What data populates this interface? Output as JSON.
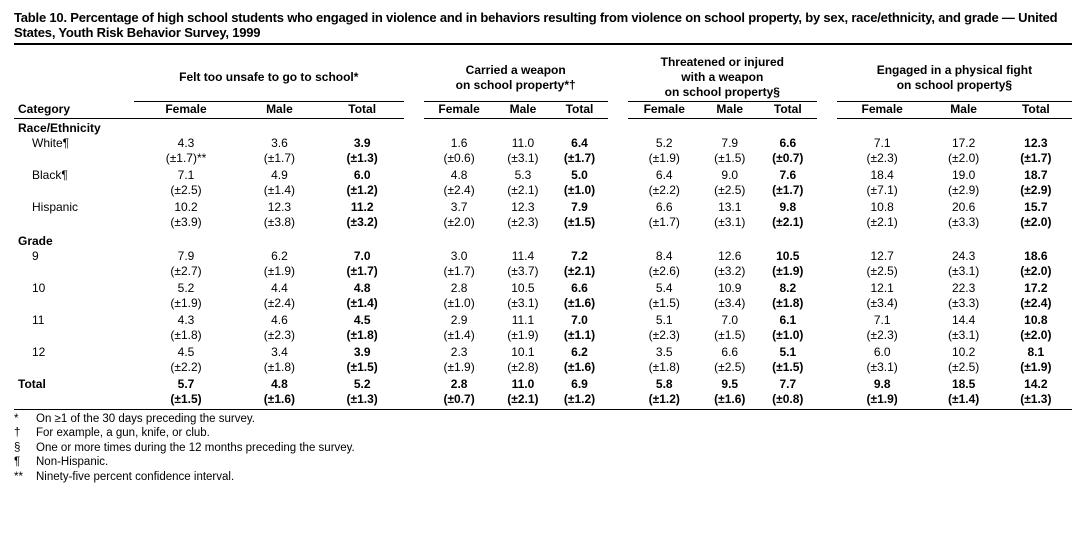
{
  "title": "Table 10. Percentage of high school students who engaged in violence and in behaviors resulting from violence on school property, by sex, race/ethnicity, and grade — United States, Youth Risk Behavior Survey, 1999",
  "category_label": "Category",
  "groups": [
    "Felt too unsafe to go to school*",
    "Carried a weapon on school property*†",
    "Threatened or injured with a weapon on school property§",
    "Engaged in a physical fight on school property§"
  ],
  "subcols": [
    "Female",
    "Male",
    "Total"
  ],
  "sections": [
    {
      "label": "Race/Ethnicity",
      "rows": [
        {
          "label": "White¶",
          "vals": [
            "4.3",
            "3.6",
            "3.9",
            "1.6",
            "11.0",
            "6.4",
            "5.2",
            "7.9",
            "6.6",
            "7.1",
            "17.2",
            "12.3"
          ],
          "cis": [
            "(±1.7)**",
            "(±1.7)",
            "(±1.3)",
            "(±0.6)",
            "(±3.1)",
            "(±1.7)",
            "(±1.9)",
            "(±1.5)",
            "(±0.7)",
            "(±2.3)",
            "(±2.0)",
            "(±1.7)"
          ]
        },
        {
          "label": "Black¶",
          "vals": [
            "7.1",
            "4.9",
            "6.0",
            "4.8",
            "5.3",
            "5.0",
            "6.4",
            "9.0",
            "7.6",
            "18.4",
            "19.0",
            "18.7"
          ],
          "cis": [
            "(±2.5)",
            "(±1.4)",
            "(±1.2)",
            "(±2.4)",
            "(±2.1)",
            "(±1.0)",
            "(±2.2)",
            "(±2.5)",
            "(±1.7)",
            "(±7.1)",
            "(±2.9)",
            "(±2.9)"
          ]
        },
        {
          "label": "Hispanic",
          "vals": [
            "10.2",
            "12.3",
            "11.2",
            "3.7",
            "12.3",
            "7.9",
            "6.6",
            "13.1",
            "9.8",
            "10.8",
            "20.6",
            "15.7"
          ],
          "cis": [
            "(±3.9)",
            "(±3.8)",
            "(±3.2)",
            "(±2.0)",
            "(±2.3)",
            "(±1.5)",
            "(±1.7)",
            "(±3.1)",
            "(±2.1)",
            "(±2.1)",
            "(±3.3)",
            "(±2.0)"
          ]
        }
      ]
    },
    {
      "label": "Grade",
      "rows": [
        {
          "label": "9",
          "vals": [
            "7.9",
            "6.2",
            "7.0",
            "3.0",
            "11.4",
            "7.2",
            "8.4",
            "12.6",
            "10.5",
            "12.7",
            "24.3",
            "18.6"
          ],
          "cis": [
            "(±2.7)",
            "(±1.9)",
            "(±1.7)",
            "(±1.7)",
            "(±3.7)",
            "(±2.1)",
            "(±2.6)",
            "(±3.2)",
            "(±1.9)",
            "(±2.5)",
            "(±3.1)",
            "(±2.0)"
          ]
        },
        {
          "label": "10",
          "vals": [
            "5.2",
            "4.4",
            "4.8",
            "2.8",
            "10.5",
            "6.6",
            "5.4",
            "10.9",
            "8.2",
            "12.1",
            "22.3",
            "17.2"
          ],
          "cis": [
            "(±1.9)",
            "(±2.4)",
            "(±1.4)",
            "(±1.0)",
            "(±3.1)",
            "(±1.6)",
            "(±1.5)",
            "(±3.4)",
            "(±1.8)",
            "(±3.4)",
            "(±3.3)",
            "(±2.4)"
          ]
        },
        {
          "label": "11",
          "vals": [
            "4.3",
            "4.6",
            "4.5",
            "2.9",
            "11.1",
            "7.0",
            "5.1",
            "7.0",
            "6.1",
            "7.1",
            "14.4",
            "10.8"
          ],
          "cis": [
            "(±1.8)",
            "(±2.3)",
            "(±1.8)",
            "(±1.4)",
            "(±1.9)",
            "(±1.1)",
            "(±2.3)",
            "(±1.5)",
            "(±1.0)",
            "(±2.3)",
            "(±3.1)",
            "(±2.0)"
          ]
        },
        {
          "label": "12",
          "vals": [
            "4.5",
            "3.4",
            "3.9",
            "2.3",
            "10.1",
            "6.2",
            "3.5",
            "6.6",
            "5.1",
            "6.0",
            "10.2",
            "8.1"
          ],
          "cis": [
            "(±2.2)",
            "(±1.8)",
            "(±1.5)",
            "(±1.9)",
            "(±2.8)",
            "(±1.6)",
            "(±1.8)",
            "(±2.5)",
            "(±1.5)",
            "(±3.1)",
            "(±2.5)",
            "(±1.9)"
          ]
        }
      ]
    }
  ],
  "total": {
    "label": "Total",
    "vals": [
      "5.7",
      "4.8",
      "5.2",
      "2.8",
      "11.0",
      "6.9",
      "5.8",
      "9.5",
      "7.7",
      "9.8",
      "18.5",
      "14.2"
    ],
    "cis": [
      "(±1.5)",
      "(±1.6)",
      "(±1.3)",
      "(±0.7)",
      "(±2.1)",
      "(±1.2)",
      "(±1.2)",
      "(±1.6)",
      "(±0.8)",
      "(±1.9)",
      "(±1.4)",
      "(±1.3)"
    ]
  },
  "footnotes": [
    {
      "mark": "*",
      "text": "On ≥1 of the 30 days preceding the survey."
    },
    {
      "mark": "†",
      "text": "For example, a gun, knife, or club."
    },
    {
      "mark": "§",
      "text": "One or more times during the 12 months preceding the survey."
    },
    {
      "mark": "¶",
      "text": "Non-Hispanic."
    },
    {
      "mark": "**",
      "text": "Ninety-five percent confidence interval."
    }
  ]
}
